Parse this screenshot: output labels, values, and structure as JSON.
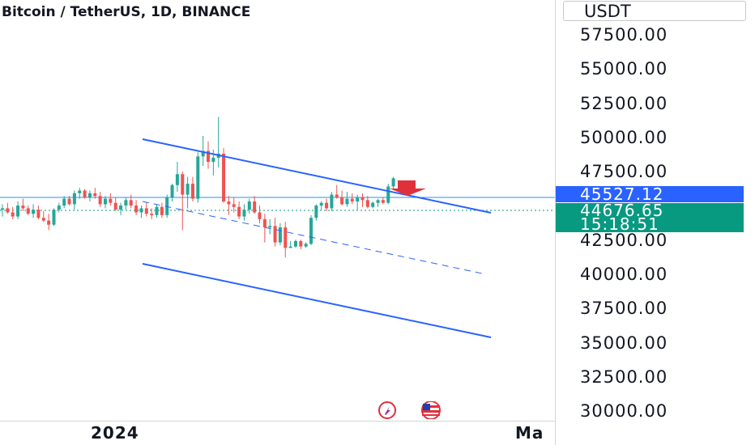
{
  "chart_title": "Bitcoin / TetherUS, 1D, BINANCE",
  "price_axis": {
    "currency": "USDT",
    "ticks": [
      "57500.00",
      "55000.00",
      "52500.00",
      "50000.00",
      "47500.00",
      "42500.00",
      "40000.00",
      "37500.00",
      "35000.00",
      "32500.00",
      "30000.00"
    ],
    "line_badge": "45527.12",
    "price_badge": "44676.65",
    "countdown": "15:18:51"
  },
  "time_axis": {
    "labels": [
      "2024",
      "Ma"
    ]
  },
  "colors": {
    "up": "#26a69a",
    "down": "#ef5350",
    "channel": "#2962ff",
    "line_badge": "#2962ff",
    "price_badge": "#089981",
    "arrow": "#e0303a"
  },
  "chart_data": {
    "type": "candlestick",
    "title": "Bitcoin / TetherUS, 1D, BINANCE",
    "ylabel": "USDT",
    "ylim": [
      30000,
      58500
    ],
    "candles": [
      [
        42200,
        42600,
        41700,
        42300
      ],
      [
        42300,
        42700,
        41900,
        42000
      ],
      [
        42000,
        42400,
        41500,
        41700
      ],
      [
        41700,
        42800,
        41500,
        42500
      ],
      [
        42500,
        43000,
        42100,
        42300
      ],
      [
        42300,
        42500,
        41800,
        41900
      ],
      [
        41900,
        42600,
        41600,
        42200
      ],
      [
        42200,
        42500,
        41500,
        41600
      ],
      [
        41600,
        42100,
        41300,
        41400
      ],
      [
        41400,
        41900,
        40700,
        41100
      ],
      [
        41100,
        42300,
        41000,
        42200
      ],
      [
        42200,
        42700,
        42000,
        42500
      ],
      [
        42500,
        43200,
        42300,
        43000
      ],
      [
        43000,
        43200,
        42500,
        42600
      ],
      [
        42600,
        43600,
        42200,
        43400
      ],
      [
        43400,
        43800,
        43000,
        43600
      ],
      [
        43600,
        43700,
        43000,
        43100
      ],
      [
        43100,
        43600,
        42800,
        43400
      ],
      [
        43400,
        43800,
        43000,
        43200
      ],
      [
        43200,
        43500,
        42400,
        42600
      ],
      [
        42600,
        43200,
        42300,
        43000
      ],
      [
        43000,
        43400,
        42500,
        42700
      ],
      [
        42700,
        43100,
        42100,
        42200
      ],
      [
        42200,
        42700,
        41800,
        42500
      ],
      [
        42500,
        43100,
        42200,
        42900
      ],
      [
        42900,
        43300,
        42300,
        42500
      ],
      [
        42500,
        42900,
        41800,
        42000
      ],
      [
        42000,
        42500,
        41600,
        42300
      ],
      [
        42300,
        42700,
        41700,
        41900
      ],
      [
        41900,
        42300,
        41500,
        41800
      ],
      [
        41800,
        42600,
        41600,
        42400
      ],
      [
        42400,
        42700,
        41600,
        41800
      ],
      [
        41800,
        43300,
        41600,
        43100
      ],
      [
        43100,
        44100,
        42800,
        44000
      ],
      [
        44000,
        45700,
        43500,
        44800
      ],
      [
        44800,
        45000,
        40700,
        43300
      ],
      [
        43300,
        44600,
        42300,
        44100
      ],
      [
        44100,
        44600,
        42800,
        43000
      ],
      [
        43000,
        46400,
        42700,
        46100
      ],
      [
        46100,
        47600,
        45400,
        46500
      ],
      [
        46500,
        47200,
        45200,
        45700
      ],
      [
        45700,
        46600,
        44700,
        46000
      ],
      [
        46000,
        49000,
        45300,
        46300
      ],
      [
        46300,
        46700,
        42700,
        42800
      ],
      [
        42800,
        43200,
        41800,
        42600
      ],
      [
        42600,
        43100,
        42000,
        42400
      ],
      [
        42400,
        42800,
        41500,
        41700
      ],
      [
        41700,
        42600,
        41400,
        42200
      ],
      [
        42200,
        43000,
        41900,
        42800
      ],
      [
        42800,
        43200,
        41900,
        42000
      ],
      [
        42000,
        42500,
        41200,
        41500
      ],
      [
        41500,
        41900,
        39800,
        40900
      ],
      [
        40900,
        41500,
        40400,
        41000
      ],
      [
        41000,
        41600,
        39500,
        39800
      ],
      [
        39800,
        41200,
        39600,
        40900
      ],
      [
        40900,
        41300,
        38700,
        39400
      ],
      [
        39400,
        39900,
        39400,
        39500
      ],
      [
        39500,
        40000,
        39400,
        39900
      ],
      [
        39900,
        40000,
        39300,
        39500
      ],
      [
        39500,
        39800,
        39400,
        39700
      ],
      [
        39700,
        41800,
        39600,
        41600
      ],
      [
        41600,
        42600,
        41400,
        42500
      ],
      [
        42500,
        42800,
        42200,
        42700
      ],
      [
        42700,
        43000,
        42100,
        42300
      ],
      [
        42300,
        43500,
        42100,
        43300
      ],
      [
        43300,
        44000,
        43000,
        43100
      ],
      [
        43100,
        43600,
        42500,
        42600
      ],
      [
        42600,
        43500,
        42400,
        43000
      ],
      [
        43000,
        43400,
        42600,
        42800
      ],
      [
        42800,
        43300,
        42200,
        43100
      ],
      [
        43100,
        43400,
        42400,
        42900
      ],
      [
        42900,
        43200,
        42300,
        42400
      ],
      [
        42400,
        42800,
        42300,
        42700
      ],
      [
        42700,
        43000,
        42400,
        42900
      ],
      [
        42900,
        43100,
        42600,
        42700
      ],
      [
        42700,
        44100,
        42600,
        43900
      ],
      [
        43900,
        44600,
        43700,
        44500
      ]
    ],
    "last_price": 44676.65,
    "reference_line": 45527.12
  }
}
